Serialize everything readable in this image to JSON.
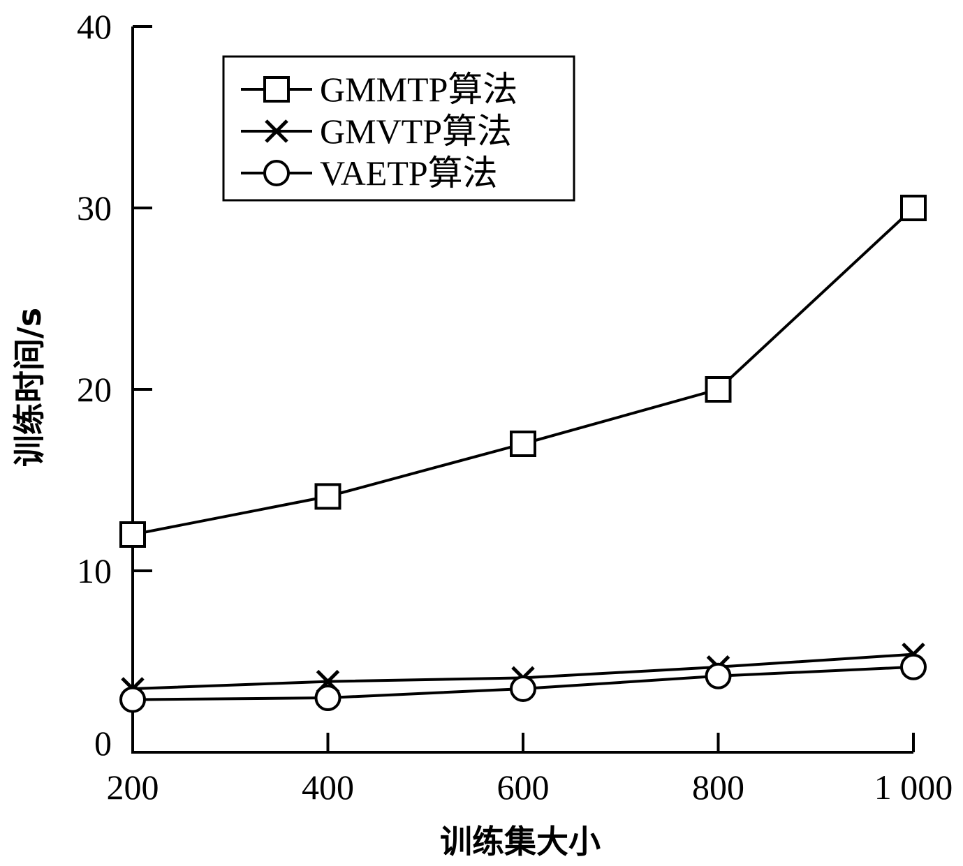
{
  "chart_data": {
    "type": "line",
    "xlabel": "训练集大小",
    "ylabel": "训练时间/s",
    "x": [
      200,
      400,
      600,
      800,
      1000
    ],
    "x_tick_labels": [
      "200",
      "400",
      "600",
      "800",
      "1 000"
    ],
    "xlim": [
      200,
      1000
    ],
    "ylim": [
      0,
      40
    ],
    "y_ticks": [
      0,
      10,
      20,
      30,
      40
    ],
    "y_tick_labels": [
      "0",
      "10",
      "20",
      "30",
      "40"
    ],
    "grid": false,
    "legend_position": "top-left",
    "series": [
      {
        "name": "GMMTP算法",
        "marker": "square",
        "values": [
          12.0,
          14.1,
          17.0,
          20.0,
          30.0
        ]
      },
      {
        "name": "GMVTP算法",
        "marker": "x",
        "values": [
          3.5,
          3.9,
          4.1,
          4.7,
          5.4
        ]
      },
      {
        "name": "VAETP算法",
        "marker": "circle",
        "values": [
          2.9,
          3.0,
          3.5,
          4.2,
          4.7
        ]
      }
    ]
  }
}
